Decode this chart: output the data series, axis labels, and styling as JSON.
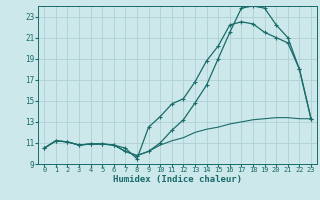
{
  "xlabel": "Humidex (Indice chaleur)",
  "bg_color": "#cce8ea",
  "grid_color": "#b0d0d3",
  "line_color": "#1a6b6b",
  "xlim": [
    -0.5,
    23.5
  ],
  "ylim": [
    9,
    24
  ],
  "xticks": [
    0,
    1,
    2,
    3,
    4,
    5,
    6,
    7,
    8,
    9,
    10,
    11,
    12,
    13,
    14,
    15,
    16,
    17,
    18,
    19,
    20,
    21,
    22,
    23
  ],
  "yticks": [
    9,
    11,
    13,
    15,
    17,
    19,
    21,
    23
  ],
  "line1_x": [
    0,
    1,
    2,
    3,
    4,
    5,
    6,
    7,
    8,
    9,
    10,
    11,
    12,
    13,
    14,
    15,
    16,
    17,
    18,
    19,
    20,
    21,
    22,
    23
  ],
  "line1_y": [
    10.5,
    11.2,
    11.1,
    10.8,
    10.9,
    10.9,
    10.8,
    10.5,
    9.5,
    12.5,
    13.5,
    14.7,
    15.2,
    16.8,
    18.8,
    20.2,
    22.2,
    22.5,
    22.3,
    21.5,
    21.0,
    20.5,
    18.0,
    13.3
  ],
  "line2_x": [
    0,
    1,
    2,
    3,
    4,
    5,
    6,
    7,
    8,
    9,
    10,
    11,
    12,
    13,
    14,
    15,
    16,
    17,
    18,
    19,
    20,
    21,
    22,
    23
  ],
  "line2_y": [
    10.5,
    11.2,
    11.1,
    10.8,
    10.9,
    10.9,
    10.8,
    10.2,
    9.8,
    10.2,
    11.0,
    12.2,
    13.2,
    14.8,
    16.5,
    19.0,
    21.5,
    23.8,
    24.0,
    23.8,
    22.2,
    21.0,
    18.0,
    13.3
  ],
  "line3_x": [
    0,
    1,
    2,
    3,
    4,
    5,
    6,
    7,
    8,
    9,
    10,
    11,
    12,
    13,
    14,
    15,
    16,
    17,
    18,
    19,
    20,
    21,
    22,
    23
  ],
  "line3_y": [
    10.5,
    11.2,
    11.1,
    10.8,
    10.9,
    10.9,
    10.8,
    10.2,
    9.8,
    10.2,
    10.8,
    11.2,
    11.5,
    12.0,
    12.3,
    12.5,
    12.8,
    13.0,
    13.2,
    13.3,
    13.4,
    13.4,
    13.3,
    13.3
  ]
}
